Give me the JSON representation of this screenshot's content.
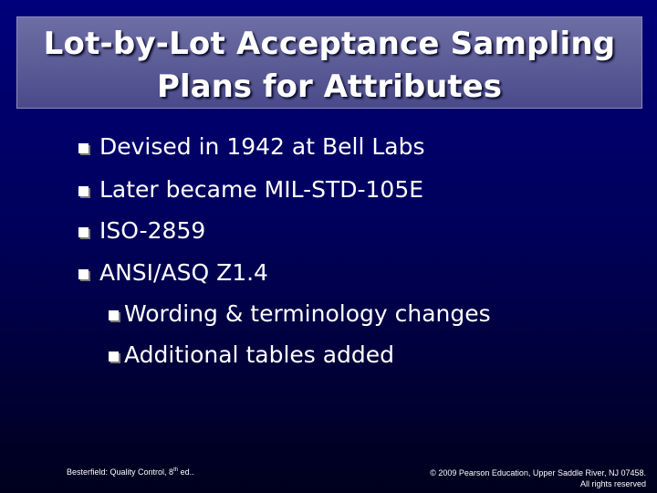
{
  "slide": {
    "title_line1": "Lot-by-Lot Acceptance Sampling",
    "title_line2": "Plans for Attributes",
    "bullets": [
      {
        "text": "Devised in 1942 at Bell Labs",
        "icon": "checkbox-bullet-icon"
      },
      {
        "text": "Later became MIL-STD-105E",
        "icon": "checkbox-bullet-icon"
      },
      {
        "text": "ISO-2859",
        "icon": "checkbox-bullet-icon"
      },
      {
        "text": "ANSI/ASQ Z1.4",
        "icon": "checkbox-bullet-icon"
      }
    ],
    "sub_bullets": [
      {
        "text": "Wording & terminology changes",
        "icon": "checkbox-bullet-icon"
      },
      {
        "text": "Additional tables added",
        "icon": "checkbox-bullet-icon"
      }
    ],
    "footer_left_prefix": "Besterfield: Quality Control, 8",
    "footer_left_sup": "th",
    "footer_left_suffix": " ed..",
    "footer_right_line1": "© 2009 Pearson Education, Upper Saddle River, NJ 07458.",
    "footer_right_line2": "All rights reserved",
    "colors": {
      "background_top": "#00007a",
      "background_bottom": "#00001c",
      "title_box": "#5e5e98",
      "text": "#ffffff"
    }
  }
}
